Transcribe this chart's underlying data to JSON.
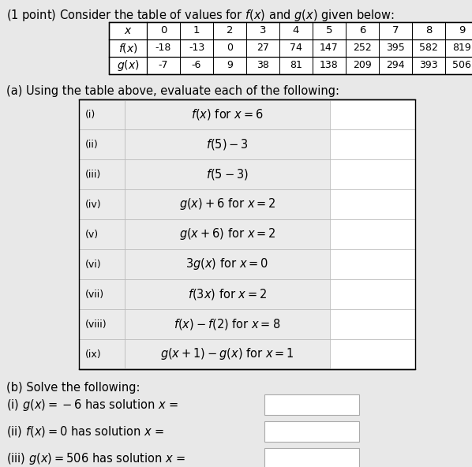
{
  "bg_color": "#e8e8e8",
  "title": "(1 point) Consider the table of values for $f(x)$ and $g(x)$ given below:",
  "x_vals": [
    "0",
    "1",
    "2",
    "3",
    "4",
    "5",
    "6",
    "7",
    "8",
    "9"
  ],
  "fx_vals": [
    "-18",
    "-13",
    "0",
    "27",
    "74",
    "147",
    "252",
    "395",
    "582",
    "819"
  ],
  "gx_vals": [
    "-7",
    "-6",
    "9",
    "38",
    "81",
    "138",
    "209",
    "294",
    "393",
    "506"
  ],
  "part_a_label": "(a) Using the table above, evaluate each of the following:",
  "part_a_rows": [
    [
      "(i)",
      "$f(x)$ for $x = 6$"
    ],
    [
      "(ii)",
      "$f(5) - 3$"
    ],
    [
      "(iii)",
      "$f(5 - 3)$"
    ],
    [
      "(iv)",
      "$g(x) + 6$ for $x = 2$"
    ],
    [
      "(v)",
      "$g(x + 6)$ for $x = 2$"
    ],
    [
      "(vi)",
      "$3g(x)$ for $x = 0$"
    ],
    [
      "(vii)",
      "$f(3x)$ for $x = 2$"
    ],
    [
      "(viii)",
      "$f(x) - f(2)$ for $x = 8$"
    ],
    [
      "(ix)",
      "$g(x + 1) - g(x)$ for $x = 1$"
    ]
  ],
  "part_b_label": "(b) Solve the following:",
  "part_b_rows": [
    "(i) $g(x) = -6$ has solution $x$ =",
    "(ii) $f(x) = 0$ has solution $x$ =",
    "(iii) $g(x) = 506$ has solution $x$ ="
  ]
}
